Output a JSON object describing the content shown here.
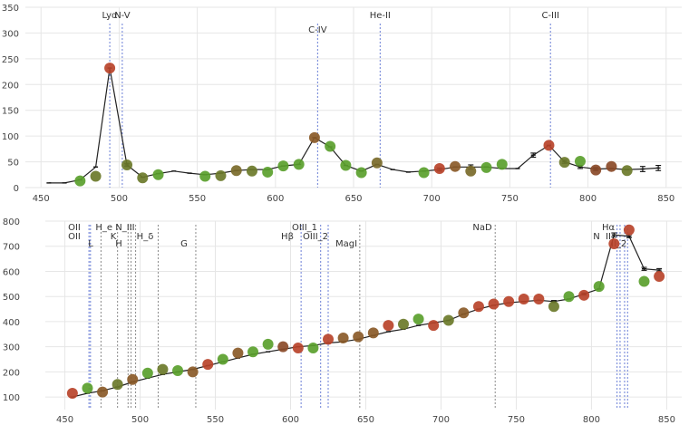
{
  "chart_data": [
    {
      "type": "line",
      "title": "",
      "xlabel": "",
      "ylabel": "",
      "xlim": [
        440,
        860
      ],
      "ylim": [
        0,
        350
      ],
      "xticks": [
        "450",
        "500",
        "550",
        "600",
        "650",
        "700",
        "750",
        "800",
        "850"
      ],
      "yticks": [
        "0",
        "50",
        "100",
        "150",
        "200",
        "250",
        "300",
        "350"
      ],
      "grid": true,
      "reference_lines": [
        {
          "label": "Lyα",
          "x": 494
        },
        {
          "label": "N-V",
          "x": 502
        },
        {
          "label": "C-IV",
          "x": 627
        },
        {
          "label": "He-II",
          "x": 667
        },
        {
          "label": "C-III",
          "x": 776
        }
      ],
      "series": [
        {
          "values": [
            {
              "x": 455,
              "y": 9
            },
            {
              "x": 465,
              "y": 9
            },
            {
              "x": 475,
              "y": 15
            },
            {
              "x": 485,
              "y": 40
            },
            {
              "x": 494,
              "y": 232
            },
            {
              "x": 505,
              "y": 44
            },
            {
              "x": 515,
              "y": 20
            },
            {
              "x": 525,
              "y": 27
            },
            {
              "x": 535,
              "y": 32
            },
            {
              "x": 545,
              "y": 28
            },
            {
              "x": 555,
              "y": 25
            },
            {
              "x": 565,
              "y": 28
            },
            {
              "x": 575,
              "y": 33
            },
            {
              "x": 585,
              "y": 35
            },
            {
              "x": 595,
              "y": 35
            },
            {
              "x": 605,
              "y": 42
            },
            {
              "x": 615,
              "y": 45
            },
            {
              "x": 625,
              "y": 97
            },
            {
              "x": 635,
              "y": 79
            },
            {
              "x": 645,
              "y": 43
            },
            {
              "x": 655,
              "y": 32
            },
            {
              "x": 665,
              "y": 45
            },
            {
              "x": 675,
              "y": 35
            },
            {
              "x": 685,
              "y": 30
            },
            {
              "x": 695,
              "y": 32
            },
            {
              "x": 705,
              "y": 35
            },
            {
              "x": 715,
              "y": 40
            },
            {
              "x": 725,
              "y": 40
            },
            {
              "x": 735,
              "y": 40
            },
            {
              "x": 745,
              "y": 37
            },
            {
              "x": 755,
              "y": 37
            },
            {
              "x": 765,
              "y": 63
            },
            {
              "x": 775,
              "y": 82
            },
            {
              "x": 785,
              "y": 50
            },
            {
              "x": 795,
              "y": 40
            },
            {
              "x": 805,
              "y": 36
            },
            {
              "x": 815,
              "y": 37
            },
            {
              "x": 825,
              "y": 35
            },
            {
              "x": 835,
              "y": 36
            },
            {
              "x": 845,
              "y": 38
            }
          ]
        }
      ],
      "markers": [
        {
          "x": 475,
          "y": 13,
          "color": "#5aa02c"
        },
        {
          "x": 485,
          "y": 22,
          "color": "#6b7a2a"
        },
        {
          "x": 494,
          "y": 232,
          "color": "#b8432a"
        },
        {
          "x": 505,
          "y": 44,
          "color": "#6b7a2a"
        },
        {
          "x": 515,
          "y": 19,
          "color": "#6b7a2a"
        },
        {
          "x": 525,
          "y": 25,
          "color": "#5aa02c"
        },
        {
          "x": 555,
          "y": 22,
          "color": "#5aa02c"
        },
        {
          "x": 565,
          "y": 23,
          "color": "#6b7a2a"
        },
        {
          "x": 575,
          "y": 33,
          "color": "#7a6a2a"
        },
        {
          "x": 585,
          "y": 32,
          "color": "#6b7a2a"
        },
        {
          "x": 595,
          "y": 30,
          "color": "#5aa02c"
        },
        {
          "x": 605,
          "y": 42,
          "color": "#5aa02c"
        },
        {
          "x": 615,
          "y": 45,
          "color": "#5aa02c"
        },
        {
          "x": 625,
          "y": 97,
          "color": "#8a5a28"
        },
        {
          "x": 635,
          "y": 80,
          "color": "#5aa02c"
        },
        {
          "x": 645,
          "y": 43,
          "color": "#5aa02c"
        },
        {
          "x": 655,
          "y": 29,
          "color": "#5aa02c"
        },
        {
          "x": 665,
          "y": 48,
          "color": "#7a6a2a"
        },
        {
          "x": 695,
          "y": 29,
          "color": "#5aa02c"
        },
        {
          "x": 705,
          "y": 37,
          "color": "#b8432a"
        },
        {
          "x": 715,
          "y": 41,
          "color": "#8a5a28"
        },
        {
          "x": 725,
          "y": 32,
          "color": "#7a6a2a"
        },
        {
          "x": 735,
          "y": 39,
          "color": "#5aa02c"
        },
        {
          "x": 745,
          "y": 45,
          "color": "#5aa02c"
        },
        {
          "x": 775,
          "y": 82,
          "color": "#b8432a"
        },
        {
          "x": 785,
          "y": 49,
          "color": "#6b7a2a"
        },
        {
          "x": 795,
          "y": 51,
          "color": "#5aa02c"
        },
        {
          "x": 805,
          "y": 34,
          "color": "#8a4a28"
        },
        {
          "x": 815,
          "y": 41,
          "color": "#8a4a28"
        },
        {
          "x": 825,
          "y": 33,
          "color": "#6b7a2a"
        }
      ],
      "error_bars": [
        {
          "x": 505,
          "y": 44,
          "err": 3
        },
        {
          "x": 705,
          "y": 35,
          "err": 3
        },
        {
          "x": 725,
          "y": 40,
          "err": 4
        },
        {
          "x": 765,
          "y": 63,
          "err": 4
        },
        {
          "x": 785,
          "y": 50,
          "err": 3
        },
        {
          "x": 795,
          "y": 40,
          "err": 3
        },
        {
          "x": 805,
          "y": 36,
          "err": 3
        },
        {
          "x": 835,
          "y": 36,
          "err": 5
        },
        {
          "x": 845,
          "y": 38,
          "err": 5
        }
      ]
    },
    {
      "type": "line",
      "title": "",
      "xlabel": "",
      "ylabel": "",
      "xlim": [
        437,
        860
      ],
      "ylim": [
        50,
        800
      ],
      "xticks": [
        "450",
        "500",
        "550",
        "600",
        "650",
        "700",
        "750",
        "800",
        "850"
      ],
      "yticks": [
        "100",
        "200",
        "300",
        "400",
        "500",
        "600",
        "700",
        "800"
      ],
      "grid": true,
      "reference_lines": [
        {
          "label": "OII",
          "x": 466,
          "style": "blue"
        },
        {
          "label": "OII",
          "x": 467,
          "style": "blue"
        },
        {
          "label": "L",
          "x": 474,
          "style": "grey"
        },
        {
          "label": "H_e",
          "x": 485,
          "style": "grey"
        },
        {
          "label": "N_III",
          "x": 492,
          "style": "grey"
        },
        {
          "label": "K",
          "x": 494,
          "style": "grey"
        },
        {
          "label": "H",
          "x": 497,
          "style": "grey"
        },
        {
          "label": "H_δ",
          "x": 512,
          "style": "grey"
        },
        {
          "label": "G",
          "x": 537,
          "style": "grey"
        },
        {
          "label": "Hβ",
          "x": 607,
          "style": "blue"
        },
        {
          "label": "OIII_1",
          "x": 620,
          "style": "blue"
        },
        {
          "label": "OIII_2",
          "x": 625,
          "style": "blue"
        },
        {
          "label": "MagI",
          "x": 646,
          "style": "grey"
        },
        {
          "label": "NaD",
          "x": 736,
          "style": "grey"
        },
        {
          "label": "Hα",
          "x": 819,
          "style": "blue"
        },
        {
          "label": "NII",
          "x": 817,
          "style": "blue"
        },
        {
          "label": "SII",
          "x": 822,
          "style": "blue"
        },
        {
          "label": "SII_2",
          "x": 824,
          "style": "blue"
        }
      ],
      "ref_label_texts": {
        "oii_a": "OII",
        "oii_b": "OII",
        "l": "L",
        "he_ni": "H_e N_III",
        "k": "K",
        "h": "H",
        "hd": "H_δ",
        "g": "G",
        "hb": "Hβ",
        "oiii1": "OIII_1",
        "oiii2": "OIII_2",
        "magi": "MagI",
        "nad": "NaD",
        "ha": "Hα",
        "nii": "N",
        "sii": "II",
        "sii2": "II_2"
      },
      "series": [
        {
          "values": [
            {
              "x": 455,
              "y": 100
            },
            {
              "x": 465,
              "y": 115
            },
            {
              "x": 475,
              "y": 125
            },
            {
              "x": 485,
              "y": 140
            },
            {
              "x": 495,
              "y": 160
            },
            {
              "x": 505,
              "y": 175
            },
            {
              "x": 515,
              "y": 190
            },
            {
              "x": 525,
              "y": 200
            },
            {
              "x": 535,
              "y": 210
            },
            {
              "x": 545,
              "y": 225
            },
            {
              "x": 555,
              "y": 240
            },
            {
              "x": 565,
              "y": 255
            },
            {
              "x": 575,
              "y": 270
            },
            {
              "x": 585,
              "y": 280
            },
            {
              "x": 595,
              "y": 290
            },
            {
              "x": 605,
              "y": 300
            },
            {
              "x": 615,
              "y": 305
            },
            {
              "x": 625,
              "y": 315
            },
            {
              "x": 635,
              "y": 320
            },
            {
              "x": 645,
              "y": 330
            },
            {
              "x": 655,
              "y": 345
            },
            {
              "x": 665,
              "y": 360
            },
            {
              "x": 675,
              "y": 370
            },
            {
              "x": 685,
              "y": 385
            },
            {
              "x": 695,
              "y": 395
            },
            {
              "x": 705,
              "y": 405
            },
            {
              "x": 715,
              "y": 430
            },
            {
              "x": 725,
              "y": 450
            },
            {
              "x": 735,
              "y": 465
            },
            {
              "x": 745,
              "y": 475
            },
            {
              "x": 755,
              "y": 480
            },
            {
              "x": 765,
              "y": 485
            },
            {
              "x": 775,
              "y": 480
            },
            {
              "x": 785,
              "y": 490
            },
            {
              "x": 795,
              "y": 510
            },
            {
              "x": 805,
              "y": 530
            },
            {
              "x": 815,
              "y": 745
            },
            {
              "x": 825,
              "y": 740
            },
            {
              "x": 835,
              "y": 610
            },
            {
              "x": 845,
              "y": 605
            }
          ]
        }
      ],
      "markers": [
        {
          "x": 455,
          "y": 115,
          "color": "#b8432a"
        },
        {
          "x": 465,
          "y": 135,
          "color": "#5aa02c"
        },
        {
          "x": 475,
          "y": 120,
          "color": "#8a5a28"
        },
        {
          "x": 485,
          "y": 150,
          "color": "#6b7a2a"
        },
        {
          "x": 495,
          "y": 170,
          "color": "#8a5a28"
        },
        {
          "x": 505,
          "y": 195,
          "color": "#5aa02c"
        },
        {
          "x": 515,
          "y": 210,
          "color": "#6b7a2a"
        },
        {
          "x": 525,
          "y": 205,
          "color": "#5aa02c"
        },
        {
          "x": 535,
          "y": 200,
          "color": "#8a5a28"
        },
        {
          "x": 545,
          "y": 230,
          "color": "#b8432a"
        },
        {
          "x": 555,
          "y": 250,
          "color": "#5aa02c"
        },
        {
          "x": 565,
          "y": 275,
          "color": "#8a5a28"
        },
        {
          "x": 575,
          "y": 280,
          "color": "#5aa02c"
        },
        {
          "x": 585,
          "y": 310,
          "color": "#5aa02c"
        },
        {
          "x": 595,
          "y": 300,
          "color": "#8a4a28"
        },
        {
          "x": 605,
          "y": 295,
          "color": "#b8432a"
        },
        {
          "x": 615,
          "y": 295,
          "color": "#5aa02c"
        },
        {
          "x": 625,
          "y": 330,
          "color": "#b8432a"
        },
        {
          "x": 635,
          "y": 335,
          "color": "#8a5a28"
        },
        {
          "x": 645,
          "y": 340,
          "color": "#8a5a28"
        },
        {
          "x": 655,
          "y": 355,
          "color": "#8a5a28"
        },
        {
          "x": 665,
          "y": 385,
          "color": "#b8432a"
        },
        {
          "x": 675,
          "y": 390,
          "color": "#6b7a2a"
        },
        {
          "x": 685,
          "y": 410,
          "color": "#5aa02c"
        },
        {
          "x": 695,
          "y": 385,
          "color": "#b8432a"
        },
        {
          "x": 705,
          "y": 405,
          "color": "#6b7a2a"
        },
        {
          "x": 715,
          "y": 435,
          "color": "#8a5a28"
        },
        {
          "x": 725,
          "y": 460,
          "color": "#b8432a"
        },
        {
          "x": 735,
          "y": 470,
          "color": "#b8432a"
        },
        {
          "x": 745,
          "y": 480,
          "color": "#b8432a"
        },
        {
          "x": 755,
          "y": 490,
          "color": "#b8432a"
        },
        {
          "x": 765,
          "y": 490,
          "color": "#b8432a"
        },
        {
          "x": 775,
          "y": 460,
          "color": "#6b7a2a"
        },
        {
          "x": 785,
          "y": 500,
          "color": "#5aa02c"
        },
        {
          "x": 795,
          "y": 505,
          "color": "#b8432a"
        },
        {
          "x": 805,
          "y": 540,
          "color": "#5aa02c"
        },
        {
          "x": 815,
          "y": 710,
          "color": "#b8432a"
        },
        {
          "x": 825,
          "y": 765,
          "color": "#b8432a"
        },
        {
          "x": 835,
          "y": 560,
          "color": "#5aa02c"
        },
        {
          "x": 845,
          "y": 580,
          "color": "#b8432a"
        }
      ],
      "error_bars": [
        {
          "x": 775,
          "y": 480,
          "err": 4
        },
        {
          "x": 795,
          "y": 510,
          "err": 4
        },
        {
          "x": 815,
          "y": 745,
          "err": 8
        },
        {
          "x": 825,
          "y": 740,
          "err": 6
        },
        {
          "x": 835,
          "y": 610,
          "err": 6
        },
        {
          "x": 845,
          "y": 605,
          "err": 6
        }
      ]
    }
  ]
}
